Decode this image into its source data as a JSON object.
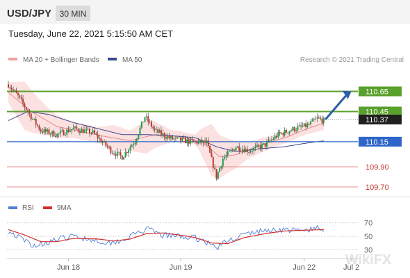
{
  "header": {
    "symbol": "USD/JPY",
    "timeframe": "30 MIN",
    "timestamp": "Tuesday, June 22, 2021 5:15:50 AM CET"
  },
  "legend": {
    "ma20_bb": "MA 20 + Bollinger Bands",
    "ma50": "MA 50",
    "rsi": "RSI",
    "rsi_ma": "9MA"
  },
  "credit": "Research © 2021 Trading Central",
  "watermark": "WikiFX",
  "colors": {
    "bull": "#16a34a",
    "bear": "#c0392b",
    "bb_fill": "#fbd7d7",
    "ma20": "#e88a8a",
    "ma50": "#3a4a8c",
    "resistance": "#5aa02c",
    "pivot": "#2f66c9",
    "support": "#e06666",
    "current": "#1f1f1f",
    "arrow": "#2d5fa8",
    "rsi": "#4f7fd6",
    "rsi_ma": "#d22e2e"
  },
  "chart_data": [
    {
      "type": "candlestick",
      "name": "price",
      "ylim": [
        109.61,
        110.84
      ],
      "x_ticks": [
        {
          "label": "Jun 18",
          "bar": 37
        },
        {
          "label": "Jun 19",
          "bar": 106
        },
        {
          "label": "Jun 22",
          "bar": 182
        },
        {
          "label": "Jul 2",
          "bar": 211
        }
      ],
      "bar_count": 216,
      "levels": [
        {
          "label": "110.65",
          "value": 110.65,
          "kind": "resistance"
        },
        {
          "label": "110.45",
          "value": 110.45,
          "kind": "resistance"
        },
        {
          "label": "110.37",
          "value": 110.37,
          "kind": "current"
        },
        {
          "label": "110.15",
          "value": 110.15,
          "kind": "pivot"
        },
        {
          "label": "109.90",
          "value": 109.9,
          "kind": "support"
        },
        {
          "label": "109.70",
          "value": 109.7,
          "kind": "support"
        }
      ],
      "arrow": {
        "from": [
          195,
          110.37
        ],
        "to": [
          211,
          110.65
        ]
      },
      "key_points": [
        [
          0,
          110.72
        ],
        [
          6,
          110.6
        ],
        [
          14,
          110.4
        ],
        [
          20,
          110.26
        ],
        [
          30,
          110.22
        ],
        [
          40,
          110.28
        ],
        [
          52,
          110.24
        ],
        [
          64,
          110.05
        ],
        [
          70,
          110.0
        ],
        [
          78,
          110.16
        ],
        [
          84,
          110.4
        ],
        [
          90,
          110.26
        ],
        [
          100,
          110.18
        ],
        [
          112,
          110.15
        ],
        [
          122,
          110.14
        ],
        [
          128,
          109.8
        ],
        [
          132,
          109.98
        ],
        [
          140,
          110.1
        ],
        [
          148,
          110.06
        ],
        [
          158,
          110.12
        ],
        [
          166,
          110.22
        ],
        [
          176,
          110.28
        ],
        [
          184,
          110.31
        ],
        [
          190,
          110.38
        ],
        [
          194,
          110.36
        ]
      ],
      "ma20_points": [
        [
          0,
          110.64
        ],
        [
          15,
          110.44
        ],
        [
          30,
          110.3
        ],
        [
          45,
          110.25
        ],
        [
          60,
          110.2
        ],
        [
          75,
          110.16
        ],
        [
          90,
          110.22
        ],
        [
          105,
          110.2
        ],
        [
          118,
          110.16
        ],
        [
          130,
          110.0
        ],
        [
          140,
          110.02
        ],
        [
          150,
          110.08
        ],
        [
          160,
          110.14
        ],
        [
          172,
          110.2
        ],
        [
          184,
          110.28
        ],
        [
          195,
          110.34
        ]
      ],
      "bb_width_points": [
        [
          0,
          0.1
        ],
        [
          10,
          0.24
        ],
        [
          25,
          0.13
        ],
        [
          40,
          0.08
        ],
        [
          55,
          0.08
        ],
        [
          65,
          0.13
        ],
        [
          75,
          0.1
        ],
        [
          85,
          0.17
        ],
        [
          100,
          0.06
        ],
        [
          115,
          0.05
        ],
        [
          125,
          0.26
        ],
        [
          135,
          0.17
        ],
        [
          148,
          0.08
        ],
        [
          165,
          0.06
        ],
        [
          180,
          0.05
        ],
        [
          195,
          0.07
        ]
      ],
      "ma50_points": [
        [
          0,
          110.36
        ],
        [
          12,
          110.45
        ],
        [
          25,
          110.42
        ],
        [
          40,
          110.34
        ],
        [
          55,
          110.28
        ],
        [
          70,
          110.22
        ],
        [
          85,
          110.22
        ],
        [
          100,
          110.21
        ],
        [
          115,
          110.19
        ],
        [
          128,
          110.1
        ],
        [
          140,
          110.05
        ],
        [
          155,
          110.08
        ],
        [
          170,
          110.1
        ],
        [
          185,
          110.14
        ],
        [
          195,
          110.16
        ]
      ]
    },
    {
      "type": "line",
      "name": "rsi",
      "ylim": [
        22,
        78
      ],
      "y_ticks": [
        70,
        50,
        30
      ],
      "series": [
        {
          "name": "RSI",
          "key_points": [
            [
              0,
              58
            ],
            [
              8,
              46
            ],
            [
              16,
              36
            ],
            [
              28,
              44
            ],
            [
              40,
              50
            ],
            [
              50,
              46
            ],
            [
              62,
              40
            ],
            [
              72,
              46
            ],
            [
              80,
              56
            ],
            [
              86,
              60
            ],
            [
              94,
              52
            ],
            [
              104,
              50
            ],
            [
              114,
              48
            ],
            [
              120,
              44
            ],
            [
              128,
              33
            ],
            [
              134,
              42
            ],
            [
              144,
              52
            ],
            [
              156,
              58
            ],
            [
              168,
              60
            ],
            [
              180,
              58
            ],
            [
              190,
              62
            ],
            [
              194,
              58
            ]
          ]
        },
        {
          "name": "9MA",
          "key_points": [
            [
              0,
              60
            ],
            [
              10,
              52
            ],
            [
              20,
              42
            ],
            [
              30,
              42
            ],
            [
              40,
              47
            ],
            [
              55,
              46
            ],
            [
              65,
              43
            ],
            [
              75,
              46
            ],
            [
              85,
              54
            ],
            [
              95,
              55
            ],
            [
              105,
              52
            ],
            [
              115,
              48
            ],
            [
              125,
              40
            ],
            [
              135,
              39
            ],
            [
              145,
              48
            ],
            [
              158,
              54
            ],
            [
              170,
              58
            ],
            [
              182,
              59
            ],
            [
              194,
              60
            ]
          ]
        }
      ]
    }
  ]
}
